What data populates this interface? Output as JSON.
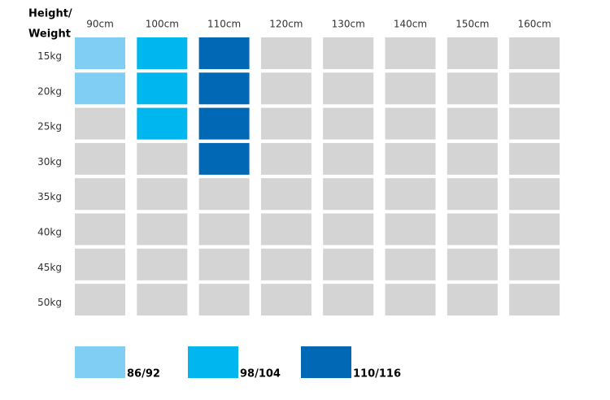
{
  "header": {
    "line1": "Height/",
    "line2": "Weight"
  },
  "columns": [
    "90cm",
    "100cm",
    "110cm",
    "120cm",
    "130cm",
    "140cm",
    "150cm",
    "160cm"
  ],
  "rows": [
    "15kg",
    "20kg",
    "25kg",
    "30kg",
    "35kg",
    "40kg",
    "45kg",
    "50kg"
  ],
  "empty_color": "#d4d4d4",
  "cells": [
    [
      "#80cef3",
      "#00b6ee",
      "#0068b5",
      null,
      null,
      null,
      null,
      null
    ],
    [
      "#80cef3",
      "#00b6ee",
      "#0068b5",
      null,
      null,
      null,
      null,
      null
    ],
    [
      null,
      "#00b6ee",
      "#0068b5",
      null,
      null,
      null,
      null,
      null
    ],
    [
      null,
      null,
      "#0068b5",
      null,
      null,
      null,
      null,
      null
    ],
    [
      null,
      null,
      null,
      null,
      null,
      null,
      null,
      null
    ],
    [
      null,
      null,
      null,
      null,
      null,
      null,
      null,
      null
    ],
    [
      null,
      null,
      null,
      null,
      null,
      null,
      null,
      null
    ],
    [
      null,
      null,
      null,
      null,
      null,
      null,
      null,
      null
    ]
  ],
  "legend": [
    {
      "label": "86/92",
      "color": "#80cef3"
    },
    {
      "label": "98/104",
      "color": "#00b6ee"
    },
    {
      "label": "110/116",
      "color": "#0068b5"
    }
  ]
}
